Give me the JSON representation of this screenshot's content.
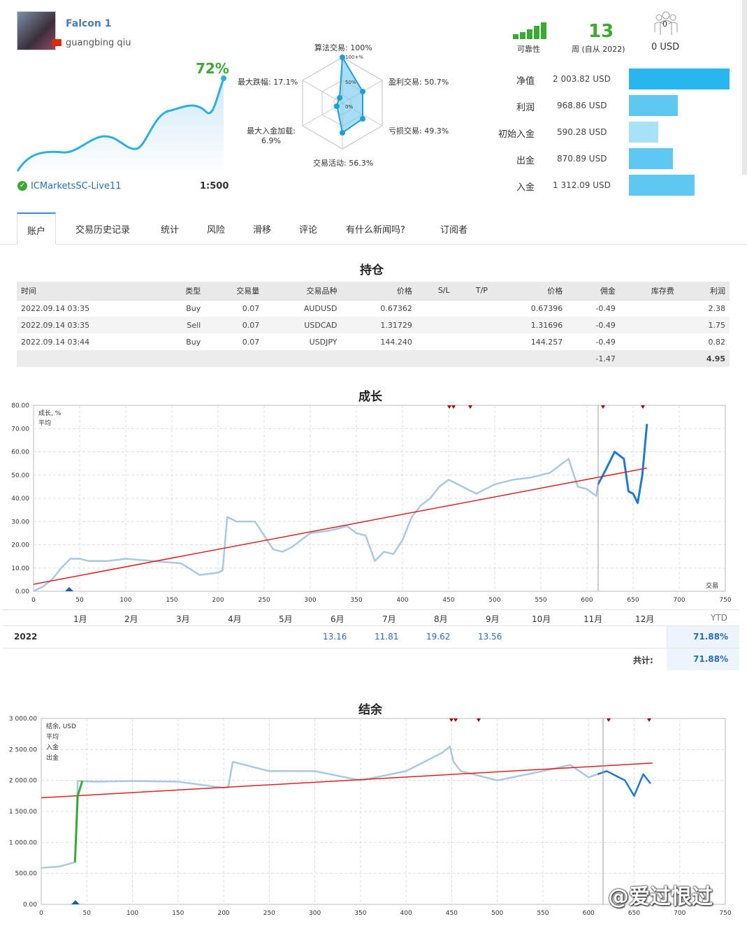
{
  "profile": {
    "name": "Falcon 1",
    "owner": "guangbing qiu",
    "broker": "ICMarketsSC-Live11",
    "leverage": "1:500",
    "growth": "72%"
  },
  "radar": {
    "algo": "算法交易: 100%",
    "profit_trades": "盈利交易: 50.7%",
    "loss_trades": "亏损交易: 49.3%",
    "activity": "交易活动: 56.3%",
    "max_deposit_load_a": "最大入金加载:",
    "max_deposit_load_b": "6.9%",
    "max_drawdown": "最大跌幅: 17.1%",
    "ring_100": "100+%",
    "ring_50": "50%",
    "ring_0": "0%"
  },
  "header_stats": {
    "reliability_label": "可靠性",
    "weeks_value": "13",
    "weeks_label": "周 (自从 2022)",
    "subscribers_count": "0",
    "subscribers_value": "0 USD"
  },
  "account_stats": [
    {
      "label": "净值",
      "value": "2 003.82 USD",
      "color": "#29b6ee"
    },
    {
      "label": "利润",
      "value": "968.86 USD",
      "color": "#5ec8f0"
    },
    {
      "label": "初始入金",
      "value": "590.28 USD",
      "color": "#a6e1f8"
    },
    {
      "label": "出金",
      "value": "870.89 USD",
      "color": "#5ec8f0"
    },
    {
      "label": "入金",
      "value": "1 312.09 USD",
      "color": "#5ec8f0"
    }
  ],
  "tabs": [
    "账户",
    "交易历史记录",
    "统计",
    "风险",
    "滑移",
    "评论",
    "有什么新闻吗?",
    "订阅者"
  ],
  "positions": {
    "title": "持仓",
    "headers": [
      "时间",
      "类型",
      "交易量",
      "交易品种",
      "价格",
      "S/L",
      "T/P",
      "价格",
      "佣金",
      "库存费",
      "利润"
    ],
    "rows": [
      [
        "2022.09.14 03:35",
        "Buy",
        "0.07",
        "AUDUSD",
        "0.67362",
        "",
        "",
        "0.67396",
        "-0.49",
        "",
        "2.38"
      ],
      [
        "2022.09.14 03:35",
        "Sell",
        "0.07",
        "USDCAD",
        "1.31729",
        "",
        "",
        "1.31696",
        "-0.49",
        "",
        "1.75"
      ],
      [
        "2022.09.14 03:44",
        "Buy",
        "0.07",
        "USDJPY",
        "144.240",
        "",
        "",
        "144.257",
        "-0.49",
        "",
        "0.82"
      ]
    ],
    "total_commission": "-1.47",
    "total_profit": "4.95"
  },
  "growth_section": {
    "title": "成长",
    "legend_growth": "成长, %",
    "legend_avg": "平均",
    "x_axis_label": "交易",
    "months": [
      "1月",
      "2月",
      "3月",
      "4月",
      "5月",
      "6月",
      "7月",
      "8月",
      "9月",
      "10月",
      "11月",
      "12月"
    ],
    "ytd_label": "YTD",
    "year": "2022",
    "monthly_values": [
      "",
      "",
      "",
      "",
      "",
      "13.16",
      "11.81",
      "19.62",
      "13.56",
      "",
      "",
      ""
    ],
    "ytd_value": "71.88%",
    "total_label": "共计:",
    "total_value": "71.88%"
  },
  "balance_section": {
    "title": "结余",
    "legend_balance": "结余, USD",
    "legend_avg": "平均",
    "legend_deposit": "入金",
    "legend_withdraw": "出金"
  },
  "watermark": "@爱过恨过",
  "chart_data": [
    {
      "type": "line",
      "title": "成长",
      "xlabel": "交易",
      "ylabel": "",
      "xlim": [
        0,
        750
      ],
      "ylim": [
        0,
        80
      ],
      "x_ticks": [
        0,
        50,
        100,
        150,
        200,
        250,
        300,
        350,
        400,
        450,
        500,
        550,
        600,
        650,
        700,
        750
      ],
      "y_ticks": [
        "0.00",
        "10.00",
        "20.00",
        "30.00",
        "40.00",
        "50.00",
        "60.00",
        "70.00",
        "80.00"
      ],
      "series": [
        {
          "name": "成长, %",
          "x": [
            0,
            10,
            20,
            30,
            40,
            50,
            60,
            80,
            100,
            130,
            160,
            180,
            200,
            205,
            210,
            220,
            240,
            260,
            270,
            280,
            300,
            320,
            340,
            350,
            360,
            370,
            380,
            390,
            400,
            410,
            420,
            430,
            440,
            450,
            460,
            480,
            500,
            520,
            540,
            560,
            580,
            590,
            600,
            610,
            612
          ],
          "y": [
            0,
            2,
            5,
            10,
            14,
            14,
            13,
            13,
            14,
            13,
            12,
            7,
            8,
            9,
            32,
            30,
            30,
            18,
            17,
            19,
            25,
            26,
            28,
            25,
            24,
            13,
            17,
            16,
            22,
            32,
            37,
            40,
            45,
            48,
            46,
            42,
            46,
            48,
            49,
            51,
            57,
            45,
            44,
            41,
            46
          ]
        },
        {
          "name": "",
          "x": [
            612,
            620,
            630,
            640,
            645,
            650,
            655,
            660,
            665
          ],
          "y": [
            46,
            52,
            60,
            57,
            43,
            42,
            38,
            50,
            72
          ]
        },
        {
          "name": "平均",
          "x": [
            0,
            665
          ],
          "y": [
            3,
            53
          ]
        }
      ]
    },
    {
      "type": "line",
      "title": "结余",
      "xlabel": "",
      "ylabel": "",
      "xlim": [
        0,
        750
      ],
      "ylim": [
        0,
        3000
      ],
      "x_ticks": [
        0,
        50,
        100,
        150,
        200,
        250,
        300,
        350,
        400,
        450,
        500,
        550,
        600,
        650,
        700,
        750
      ],
      "y_ticks": [
        "0.00",
        "500.00",
        "1 000.00",
        "1 500.00",
        "2 000.00",
        "2 500.00",
        "3 000.00"
      ],
      "series": [
        {
          "name": "结余, USD",
          "x": [
            0,
            20,
            37,
            40,
            60,
            100,
            150,
            200,
            205,
            210,
            250,
            300,
            350,
            400,
            440,
            448,
            452,
            460,
            500,
            550,
            580,
            600,
            610
          ],
          "y": [
            590,
            610,
            680,
            1990,
            1980,
            1990,
            1980,
            1880,
            1890,
            2300,
            2150,
            2150,
            2000,
            2150,
            2450,
            2550,
            2300,
            2150,
            2000,
            2150,
            2250,
            2050,
            2100
          ]
        },
        {
          "name": "",
          "x": [
            610,
            620,
            640,
            650,
            660,
            668
          ],
          "y": [
            2100,
            2150,
            2000,
            1750,
            2100,
            1950
          ]
        },
        {
          "name": "平均",
          "x": [
            0,
            670
          ],
          "y": [
            1720,
            2280
          ]
        },
        {
          "name": "入金",
          "x": [
            37,
            40,
            45
          ],
          "y": [
            680,
            1750,
            1990
          ]
        }
      ]
    }
  ]
}
